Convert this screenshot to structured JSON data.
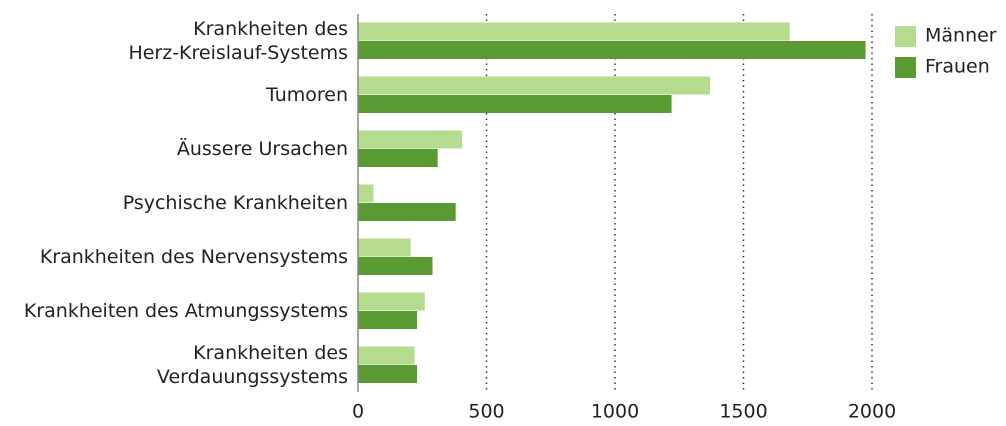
{
  "chart_data": {
    "type": "bar",
    "orientation": "horizontal",
    "categories": [
      "Krankheiten des\nHerz-Kreislauf-Systems",
      "Tumoren",
      "Äussere Ursachen",
      "Psychische Krankheiten",
      "Krankheiten des Nervensystems",
      "Krankheiten des Atmungssystems",
      "Krankheiten des\nVerdauungssystems"
    ],
    "series": [
      {
        "name": "Männer",
        "color": "#b5dc8e",
        "values": [
          1680,
          1370,
          405,
          60,
          205,
          260,
          220
        ]
      },
      {
        "name": "Frauen",
        "color": "#5a9a32",
        "values": [
          1975,
          1220,
          310,
          380,
          290,
          230,
          230
        ]
      }
    ],
    "xlim": [
      0,
      2000
    ],
    "xticks": [
      0,
      500,
      1000,
      1500,
      2000
    ],
    "grid": true,
    "legend": "top-right"
  }
}
